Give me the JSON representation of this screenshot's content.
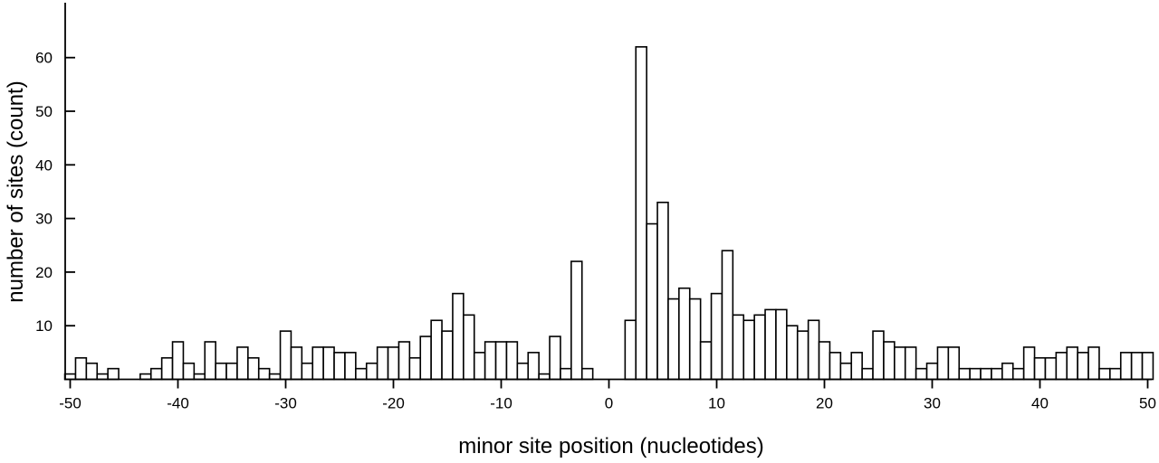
{
  "chart_data": {
    "type": "bar",
    "title": "",
    "xlabel": "minor site position (nucleotides)",
    "ylabel": "number of sites (count)",
    "xlim": [
      -50,
      50
    ],
    "ylim": [
      0,
      70
    ],
    "xticks": [
      -50,
      -40,
      -30,
      -20,
      -10,
      0,
      10,
      20,
      30,
      40,
      50
    ],
    "yticks": [
      10,
      20,
      30,
      40,
      50,
      60
    ],
    "grid": false,
    "bar_fill": "#ffffff",
    "bar_stroke": "#000000",
    "x_start": -50,
    "values": [
      1,
      4,
      3,
      1,
      2,
      0,
      0,
      1,
      2,
      4,
      7,
      3,
      1,
      7,
      3,
      3,
      6,
      4,
      2,
      1,
      9,
      6,
      3,
      6,
      6,
      5,
      5,
      2,
      3,
      6,
      6,
      7,
      4,
      8,
      11,
      9,
      16,
      12,
      5,
      7,
      7,
      7,
      3,
      5,
      1,
      8,
      2,
      22,
      2,
      0,
      0,
      0,
      11,
      62,
      29,
      33,
      15,
      17,
      15,
      7,
      16,
      24,
      12,
      11,
      12,
      13,
      13,
      10,
      9,
      11,
      7,
      5,
      3,
      5,
      2,
      9,
      7,
      6,
      6,
      2,
      3,
      6,
      6,
      2,
      2,
      2,
      2,
      3,
      2,
      6,
      4,
      4,
      5,
      6,
      5,
      6,
      2,
      2,
      5,
      5,
      5
    ]
  }
}
